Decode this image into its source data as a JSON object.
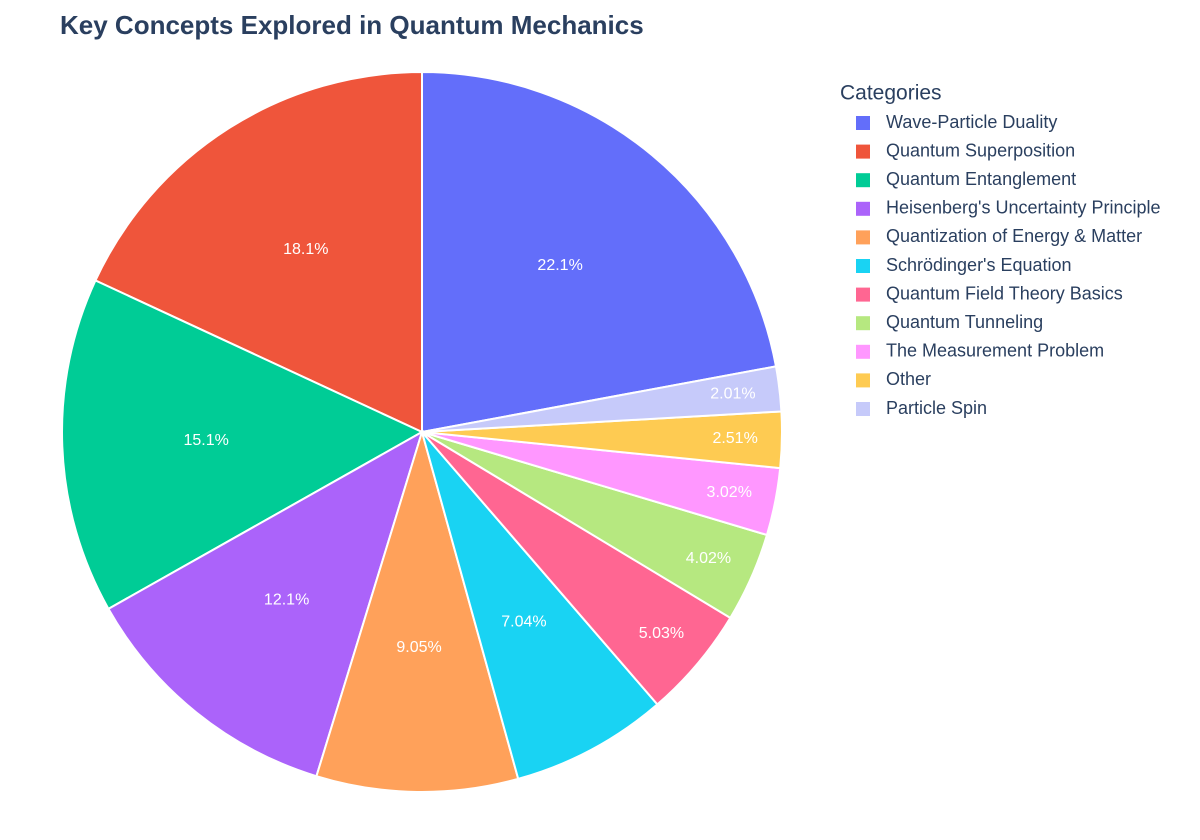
{
  "chart_data": {
    "type": "pie",
    "title": "Key Concepts Explored in Quantum Mechanics",
    "legend_title": "Categories",
    "categories": [
      "Wave-Particle Duality",
      "Quantum Superposition",
      "Quantum Entanglement",
      "Heisenberg's Uncertainty Principle",
      "Quantization of Energy & Matter",
      "Schrödinger's Equation",
      "Quantum Field Theory Basics",
      "Quantum Tunneling",
      "The Measurement Problem",
      "Other",
      "Particle Spin"
    ],
    "values": [
      22.1,
      18.1,
      15.1,
      12.1,
      9.05,
      7.04,
      5.03,
      4.02,
      3.02,
      2.51,
      2.01
    ],
    "value_labels": [
      "22.1%",
      "18.1%",
      "15.1%",
      "12.1%",
      "9.05%",
      "7.04%",
      "5.03%",
      "4.02%",
      "3.02%",
      "2.51%",
      "2.01%"
    ],
    "colors": [
      "#636efa",
      "#ef553b",
      "#00cc96",
      "#ab63fa",
      "#ffa15a",
      "#19d3f3",
      "#ff6692",
      "#b6e880",
      "#ff97ff",
      "#fecb52",
      "#c6cafa"
    ],
    "legend": "top-right"
  }
}
